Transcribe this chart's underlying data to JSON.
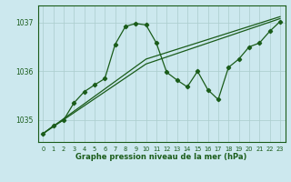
{
  "title": "Graphe pression niveau de la mer (hPa)",
  "bg_color": "#cce8ee",
  "grid_color": "#aacccc",
  "line_color": "#1a5c1a",
  "xlim": [
    -0.5,
    23.5
  ],
  "ylim": [
    1034.55,
    1037.35
  ],
  "yticks": [
    1035,
    1036,
    1037
  ],
  "xticks": [
    0,
    1,
    2,
    3,
    4,
    5,
    6,
    7,
    8,
    9,
    10,
    11,
    12,
    13,
    14,
    15,
    16,
    17,
    18,
    19,
    20,
    21,
    22,
    23
  ],
  "series_main": {
    "x": [
      0,
      1,
      2,
      3,
      4,
      5,
      6,
      7,
      8,
      9,
      10,
      11,
      12,
      13,
      14,
      15,
      16,
      17,
      18,
      19,
      20,
      21,
      22,
      23
    ],
    "y": [
      1034.72,
      1034.88,
      1035.0,
      1035.35,
      1035.58,
      1035.72,
      1035.85,
      1036.55,
      1036.92,
      1036.98,
      1036.95,
      1036.58,
      1035.98,
      1035.82,
      1035.68,
      1036.0,
      1035.62,
      1035.42,
      1036.08,
      1036.25,
      1036.5,
      1036.58,
      1036.82,
      1037.02
    ]
  },
  "series_trend1": {
    "x": [
      0,
      10,
      23
    ],
    "y": [
      1034.72,
      1036.15,
      1037.08
    ]
  },
  "series_trend2": {
    "x": [
      0,
      10,
      23
    ],
    "y": [
      1034.72,
      1036.25,
      1037.12
    ]
  }
}
